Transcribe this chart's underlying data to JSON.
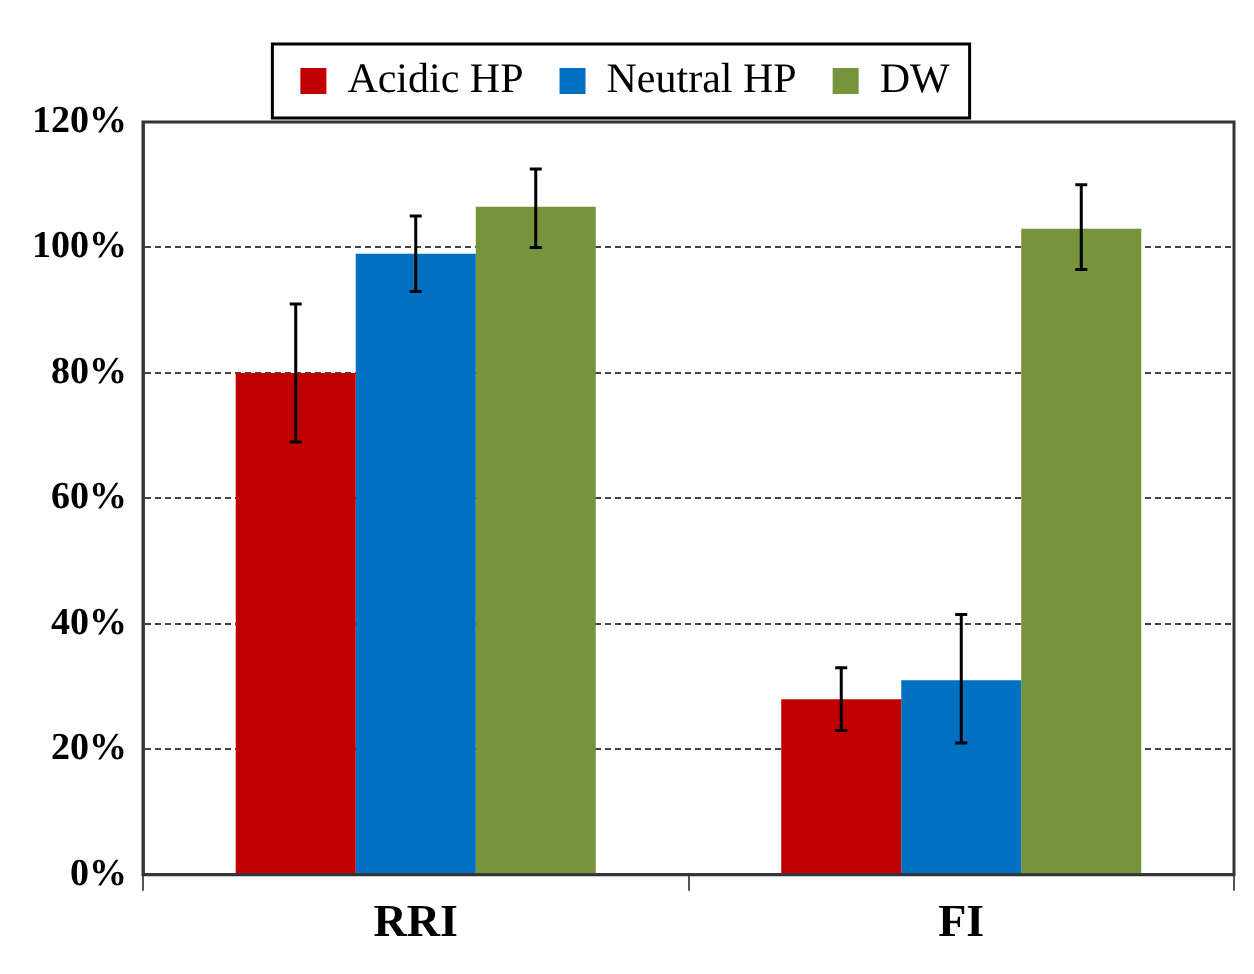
{
  "chart_data": {
    "type": "bar",
    "categories": [
      "RRI",
      "FI"
    ],
    "series": [
      {
        "name": "Acidic HP",
        "color": "#c00000",
        "values": [
          80,
          28
        ],
        "errors": [
          [
            69,
            91
          ],
          [
            23,
            33
          ]
        ]
      },
      {
        "name": "Neutral HP",
        "color": "#0070c0",
        "values": [
          99,
          31
        ],
        "errors": [
          [
            93,
            105
          ],
          [
            21,
            41.5
          ]
        ]
      },
      {
        "name": "DW",
        "color": "#77933c",
        "values": [
          106.5,
          103
        ],
        "errors": [
          [
            100,
            112.5
          ],
          [
            96.5,
            110
          ]
        ]
      }
    ],
    "ylim": [
      0,
      120
    ],
    "yticks": [
      {
        "value": 0,
        "label": "0%"
      },
      {
        "value": 20,
        "label": "20%"
      },
      {
        "value": 40,
        "label": "40%"
      },
      {
        "value": 60,
        "label": "60%"
      },
      {
        "value": 80,
        "label": "80%"
      },
      {
        "value": 100,
        "label": "100%"
      },
      {
        "value": 120,
        "label": "120%"
      }
    ],
    "grid": "y",
    "legend": "top"
  }
}
